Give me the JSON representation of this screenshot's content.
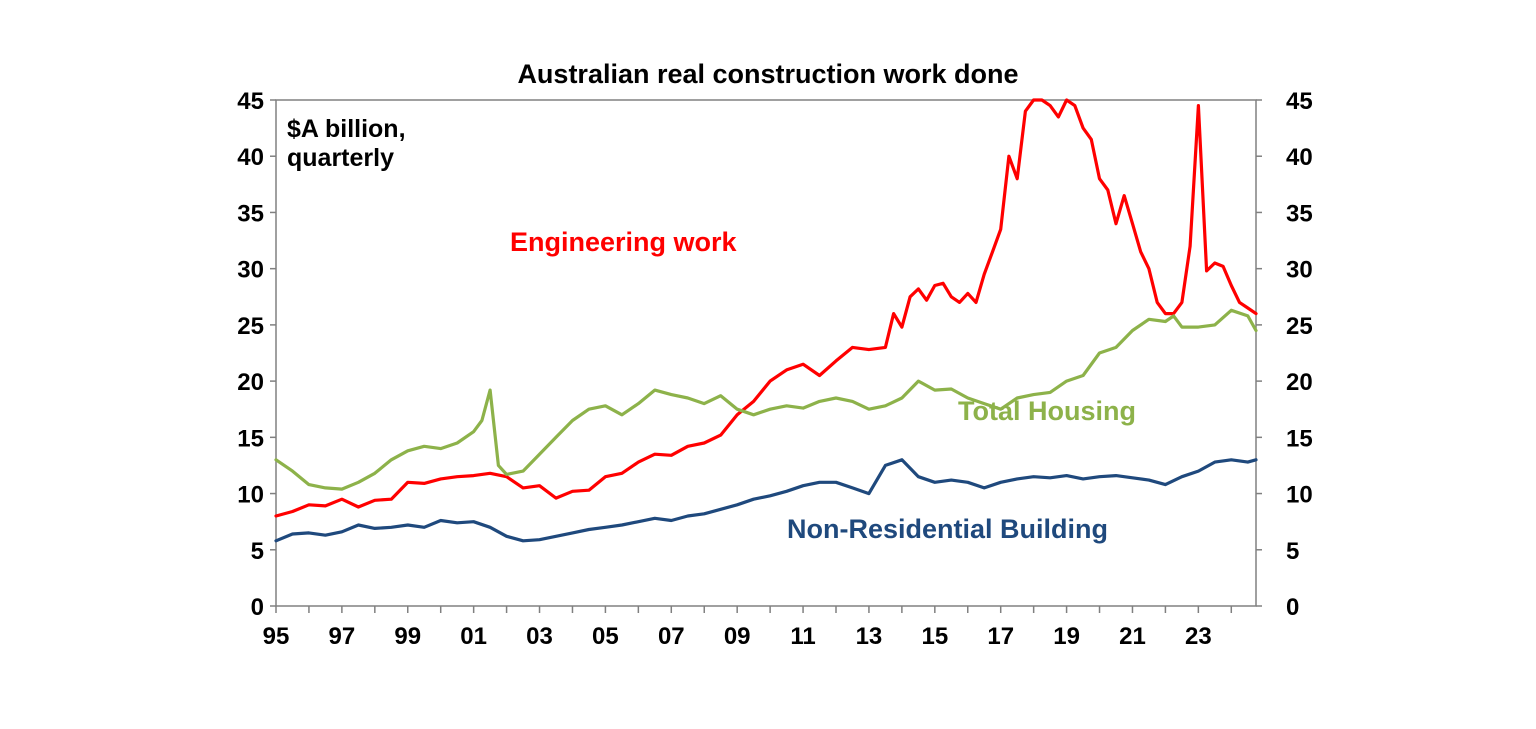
{
  "chart_data": {
    "type": "line",
    "title": "Australian real construction work done",
    "unit_label_line1": "$A billion,",
    "unit_label_line2": "quarterly",
    "xlabel": "",
    "ylabel": "",
    "x_range": [
      1995,
      2024.75
    ],
    "ylim": [
      0,
      45
    ],
    "y_ticks": [
      "0",
      "5",
      "10",
      "15",
      "20",
      "25",
      "30",
      "35",
      "40",
      "45"
    ],
    "x_ticks": [
      "95",
      "97",
      "99",
      "01",
      "03",
      "05",
      "07",
      "09",
      "11",
      "13",
      "15",
      "17",
      "19",
      "21",
      "23"
    ],
    "grid": false,
    "series": [
      {
        "name": "Engineering work",
        "color": "#ff0000",
        "points": [
          [
            1995.0,
            8.0
          ],
          [
            1995.5,
            8.4
          ],
          [
            1996.0,
            9.0
          ],
          [
            1996.5,
            8.9
          ],
          [
            1997.0,
            9.5
          ],
          [
            1997.5,
            8.8
          ],
          [
            1998.0,
            9.4
          ],
          [
            1998.5,
            9.5
          ],
          [
            1999.0,
            11.0
          ],
          [
            1999.5,
            10.9
          ],
          [
            2000.0,
            11.3
          ],
          [
            2000.5,
            11.5
          ],
          [
            2001.0,
            11.6
          ],
          [
            2001.5,
            11.8
          ],
          [
            2002.0,
            11.5
          ],
          [
            2002.5,
            10.5
          ],
          [
            2003.0,
            10.7
          ],
          [
            2003.5,
            9.6
          ],
          [
            2004.0,
            10.2
          ],
          [
            2004.5,
            10.3
          ],
          [
            2005.0,
            11.5
          ],
          [
            2005.5,
            11.8
          ],
          [
            2006.0,
            12.8
          ],
          [
            2006.5,
            13.5
          ],
          [
            2007.0,
            13.4
          ],
          [
            2007.5,
            14.2
          ],
          [
            2008.0,
            14.5
          ],
          [
            2008.5,
            15.2
          ],
          [
            2009.0,
            17.0
          ],
          [
            2009.5,
            18.2
          ],
          [
            2010.0,
            20.0
          ],
          [
            2010.5,
            21.0
          ],
          [
            2011.0,
            21.5
          ],
          [
            2011.5,
            20.5
          ],
          [
            2012.0,
            21.8
          ],
          [
            2012.5,
            23.0
          ],
          [
            2013.0,
            22.8
          ],
          [
            2013.5,
            23.0
          ],
          [
            2013.75,
            26.0
          ],
          [
            2014.0,
            24.8
          ],
          [
            2014.25,
            27.5
          ],
          [
            2014.5,
            28.2
          ],
          [
            2014.75,
            27.2
          ],
          [
            2015.0,
            28.5
          ],
          [
            2015.25,
            28.7
          ],
          [
            2015.5,
            27.5
          ],
          [
            2015.75,
            27.0
          ],
          [
            2016.0,
            27.8
          ],
          [
            2016.25,
            27.0
          ],
          [
            2016.5,
            29.5
          ],
          [
            2016.75,
            31.5
          ],
          [
            2017.0,
            33.5
          ],
          [
            2017.25,
            40.0
          ],
          [
            2017.5,
            38.0
          ],
          [
            2017.75,
            44.0
          ],
          [
            2018.0,
            45.0
          ],
          [
            2018.25,
            45.0
          ],
          [
            2018.5,
            44.5
          ],
          [
            2018.75,
            43.5
          ],
          [
            2019.0,
            45.0
          ],
          [
            2019.25,
            44.5
          ],
          [
            2019.5,
            42.5
          ],
          [
            2019.75,
            41.5
          ],
          [
            2020.0,
            38.0
          ],
          [
            2020.25,
            37.0
          ],
          [
            2020.5,
            34.0
          ],
          [
            2020.75,
            36.5
          ],
          [
            2021.0,
            34.0
          ],
          [
            2021.25,
            31.5
          ],
          [
            2021.5,
            30.0
          ],
          [
            2021.75,
            27.0
          ],
          [
            2022.0,
            26.0
          ],
          [
            2022.25,
            26.0
          ],
          [
            2022.5,
            27.0
          ],
          [
            2022.75,
            32.0
          ],
          [
            2023.0,
            44.5
          ],
          [
            2023.25,
            29.8
          ],
          [
            2023.5,
            30.5
          ],
          [
            2023.75,
            30.2
          ],
          [
            2024.0,
            28.5
          ],
          [
            2024.25,
            27.0
          ],
          [
            2024.5,
            26.5
          ],
          [
            2024.75,
            26.0
          ]
        ]
      },
      {
        "name": "Total Housing",
        "color": "#8db24a",
        "points": [
          [
            1995.0,
            13.0
          ],
          [
            1995.5,
            12.0
          ],
          [
            1996.0,
            10.8
          ],
          [
            1996.5,
            10.5
          ],
          [
            1997.0,
            10.4
          ],
          [
            1997.5,
            11.0
          ],
          [
            1998.0,
            11.8
          ],
          [
            1998.5,
            13.0
          ],
          [
            1999.0,
            13.8
          ],
          [
            1999.5,
            14.2
          ],
          [
            2000.0,
            14.0
          ],
          [
            2000.5,
            14.5
          ],
          [
            2001.0,
            15.5
          ],
          [
            2001.25,
            16.5
          ],
          [
            2001.5,
            19.2
          ],
          [
            2001.75,
            12.5
          ],
          [
            2002.0,
            11.7
          ],
          [
            2002.5,
            12.0
          ],
          [
            2003.0,
            13.5
          ],
          [
            2003.5,
            15.0
          ],
          [
            2004.0,
            16.5
          ],
          [
            2004.5,
            17.5
          ],
          [
            2005.0,
            17.8
          ],
          [
            2005.5,
            17.0
          ],
          [
            2006.0,
            18.0
          ],
          [
            2006.5,
            19.2
          ],
          [
            2007.0,
            18.8
          ],
          [
            2007.5,
            18.5
          ],
          [
            2008.0,
            18.0
          ],
          [
            2008.5,
            18.7
          ],
          [
            2009.0,
            17.5
          ],
          [
            2009.5,
            17.0
          ],
          [
            2010.0,
            17.5
          ],
          [
            2010.5,
            17.8
          ],
          [
            2011.0,
            17.6
          ],
          [
            2011.5,
            18.2
          ],
          [
            2012.0,
            18.5
          ],
          [
            2012.5,
            18.2
          ],
          [
            2013.0,
            17.5
          ],
          [
            2013.5,
            17.8
          ],
          [
            2014.0,
            18.5
          ],
          [
            2014.5,
            20.0
          ],
          [
            2015.0,
            19.2
          ],
          [
            2015.5,
            19.3
          ],
          [
            2016.0,
            18.5
          ],
          [
            2016.5,
            18.0
          ],
          [
            2017.0,
            17.5
          ],
          [
            2017.5,
            18.5
          ],
          [
            2018.0,
            18.8
          ],
          [
            2018.5,
            19.0
          ],
          [
            2019.0,
            20.0
          ],
          [
            2019.5,
            20.5
          ],
          [
            2020.0,
            22.5
          ],
          [
            2020.5,
            23.0
          ],
          [
            2021.0,
            24.5
          ],
          [
            2021.5,
            25.5
          ],
          [
            2022.0,
            25.3
          ],
          [
            2022.25,
            25.8
          ],
          [
            2022.5,
            24.8
          ],
          [
            2023.0,
            24.8
          ],
          [
            2023.5,
            25.0
          ],
          [
            2024.0,
            26.3
          ],
          [
            2024.5,
            25.8
          ],
          [
            2024.75,
            24.5
          ]
        ]
      },
      {
        "name": "Non-Residential Building",
        "color": "#1f497d",
        "points": [
          [
            1995.0,
            5.8
          ],
          [
            1995.5,
            6.4
          ],
          [
            1996.0,
            6.5
          ],
          [
            1996.5,
            6.3
          ],
          [
            1997.0,
            6.6
          ],
          [
            1997.5,
            7.2
          ],
          [
            1998.0,
            6.9
          ],
          [
            1998.5,
            7.0
          ],
          [
            1999.0,
            7.2
          ],
          [
            1999.5,
            7.0
          ],
          [
            2000.0,
            7.6
          ],
          [
            2000.5,
            7.4
          ],
          [
            2001.0,
            7.5
          ],
          [
            2001.5,
            7.0
          ],
          [
            2002.0,
            6.2
          ],
          [
            2002.5,
            5.8
          ],
          [
            2003.0,
            5.9
          ],
          [
            2003.5,
            6.2
          ],
          [
            2004.0,
            6.5
          ],
          [
            2004.5,
            6.8
          ],
          [
            2005.0,
            7.0
          ],
          [
            2005.5,
            7.2
          ],
          [
            2006.0,
            7.5
          ],
          [
            2006.5,
            7.8
          ],
          [
            2007.0,
            7.6
          ],
          [
            2007.5,
            8.0
          ],
          [
            2008.0,
            8.2
          ],
          [
            2008.5,
            8.6
          ],
          [
            2009.0,
            9.0
          ],
          [
            2009.5,
            9.5
          ],
          [
            2010.0,
            9.8
          ],
          [
            2010.5,
            10.2
          ],
          [
            2011.0,
            10.7
          ],
          [
            2011.5,
            11.0
          ],
          [
            2012.0,
            11.0
          ],
          [
            2012.5,
            10.5
          ],
          [
            2013.0,
            10.0
          ],
          [
            2013.5,
            12.5
          ],
          [
            2014.0,
            13.0
          ],
          [
            2014.5,
            11.5
          ],
          [
            2015.0,
            11.0
          ],
          [
            2015.5,
            11.2
          ],
          [
            2016.0,
            11.0
          ],
          [
            2016.5,
            10.5
          ],
          [
            2017.0,
            11.0
          ],
          [
            2017.5,
            11.3
          ],
          [
            2018.0,
            11.5
          ],
          [
            2018.5,
            11.4
          ],
          [
            2019.0,
            11.6
          ],
          [
            2019.5,
            11.3
          ],
          [
            2020.0,
            11.5
          ],
          [
            2020.5,
            11.6
          ],
          [
            2021.0,
            11.4
          ],
          [
            2021.5,
            11.2
          ],
          [
            2022.0,
            10.8
          ],
          [
            2022.5,
            11.5
          ],
          [
            2023.0,
            12.0
          ],
          [
            2023.5,
            12.8
          ],
          [
            2024.0,
            13.0
          ],
          [
            2024.5,
            12.8
          ],
          [
            2024.75,
            13.0
          ]
        ]
      }
    ],
    "series_labels": [
      "Engineering work",
      "Total Housing",
      "Non-Residential Building"
    ]
  }
}
